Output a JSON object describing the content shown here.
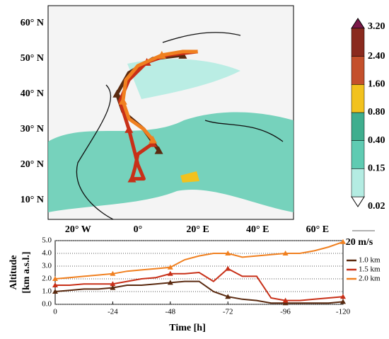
{
  "chart_data": [
    {
      "type": "map",
      "xlim": [
        -30,
        52
      ],
      "ylim": [
        4.5,
        65
      ],
      "xticks": [
        {
          "value": -20,
          "label": "20° W"
        },
        {
          "value": 0,
          "label": "0°"
        },
        {
          "value": 20,
          "label": "20° E"
        },
        {
          "value": 40,
          "label": "40° E"
        },
        {
          "value": 60,
          "label": "60° E"
        }
      ],
      "yticks": [
        {
          "value": 10,
          "label": "10° N"
        },
        {
          "value": 20,
          "label": "20° N"
        },
        {
          "value": 30,
          "label": "30° N"
        },
        {
          "value": 40,
          "label": "40° N"
        },
        {
          "value": 50,
          "label": "50° N"
        },
        {
          "value": 60,
          "label": "60° N"
        }
      ],
      "colorbar": {
        "labels": [
          "0.02",
          "0.15",
          "0.40",
          "0.80",
          "1.60",
          "2.40",
          "3.20"
        ],
        "colors": [
          "#b4ece2",
          "#5fcbb2",
          "#3fae8e",
          "#f2c21e",
          "#c4502c",
          "#8a2a1e"
        ],
        "over_color": "#7a1848"
      },
      "annotation": "20 m/s",
      "series": [
        {
          "name": "1.0 km",
          "color": "#5a2a10",
          "lon": [
            7,
            2,
            -5,
            -7,
            -3,
            5,
            15
          ],
          "lat": [
            24,
            30,
            35,
            40,
            46,
            50,
            51
          ]
        },
        {
          "name": "1.5 km",
          "color": "#c83018",
          "lon": [
            5,
            0,
            -1,
            -2,
            2,
            0,
            -3,
            -6,
            -3,
            3,
            10,
            20
          ],
          "lat": [
            26,
            23,
            19,
            16,
            16,
            20,
            30,
            38,
            44,
            49,
            51,
            52
          ]
        },
        {
          "name": "2.0 km",
          "color": "#f08020",
          "lon": [
            5,
            2,
            -3,
            -5,
            -4,
            0,
            8,
            15,
            20
          ],
          "lat": [
            27,
            30,
            33,
            38,
            44,
            48,
            51,
            52,
            52
          ]
        }
      ]
    },
    {
      "type": "line",
      "xlabel": "Time [h]",
      "ylabel": "Altitude",
      "ylabel2": "[km a.s.l.]",
      "xlim": [
        0,
        -120
      ],
      "ylim": [
        0,
        5
      ],
      "xticks": [
        0,
        -24,
        -48,
        -72,
        -96,
        -120
      ],
      "yticks": [
        {
          "value": 0,
          "label": "0.0"
        },
        {
          "value": 1,
          "label": "1.0"
        },
        {
          "value": 2,
          "label": "2.0"
        },
        {
          "value": 3,
          "label": "3.0"
        },
        {
          "value": 4,
          "label": "4.0"
        },
        {
          "value": 5,
          "label": "5.0"
        }
      ],
      "grid": true,
      "x": [
        0,
        -6,
        -12,
        -18,
        -24,
        -30,
        -36,
        -42,
        -48,
        -54,
        -60,
        -66,
        -72,
        -78,
        -84,
        -90,
        -96,
        -102,
        -108,
        -114,
        -120
      ],
      "series": [
        {
          "name": "1.0 km",
          "color": "#5a2a10",
          "values": [
            1.0,
            1.1,
            1.2,
            1.2,
            1.3,
            1.5,
            1.5,
            1.6,
            1.7,
            1.8,
            1.8,
            1.0,
            0.6,
            0.4,
            0.3,
            0.1,
            0.1,
            0.1,
            0.1,
            0.1,
            0.2
          ]
        },
        {
          "name": "1.5 km",
          "color": "#c83018",
          "values": [
            1.5,
            1.5,
            1.6,
            1.6,
            1.6,
            1.8,
            2.0,
            2.1,
            2.4,
            2.4,
            2.5,
            1.8,
            2.8,
            2.2,
            2.2,
            0.5,
            0.3,
            0.3,
            0.4,
            0.5,
            0.6
          ]
        },
        {
          "name": "2.0 km",
          "color": "#f08020",
          "values": [
            2.0,
            2.1,
            2.2,
            2.3,
            2.4,
            2.6,
            2.7,
            2.8,
            2.9,
            3.5,
            3.8,
            4.0,
            4.0,
            3.7,
            3.8,
            3.9,
            4.0,
            4.0,
            4.2,
            4.5,
            4.9
          ]
        }
      ]
    }
  ]
}
